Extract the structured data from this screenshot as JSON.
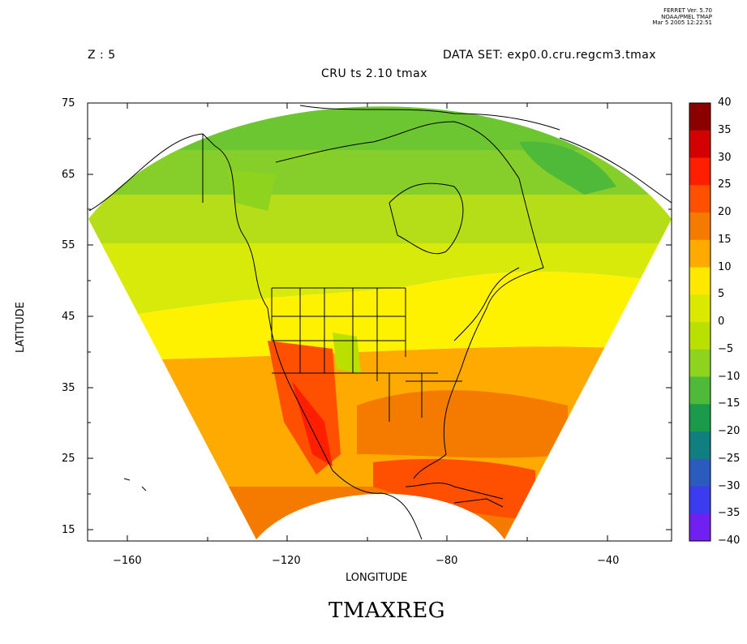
{
  "stamp": {
    "line1": "FERRET Ver. 5.70",
    "line2": "NOAA/PMEL TMAP",
    "line3": "Mar  5 2005 12:22:51"
  },
  "header": {
    "z_label": "Z : 5",
    "dataset": "DATA SET: exp0.0.cru.regcm3.tmax",
    "title": "CRU ts 2.10 tmax"
  },
  "axes": {
    "xlabel": "LONGITUDE",
    "ylabel": "LATITUDE",
    "x_ticks": [
      "−160",
      "−120",
      "−80",
      "−40"
    ],
    "y_ticks": [
      "75",
      "65",
      "55",
      "45",
      "35",
      "25",
      "15"
    ]
  },
  "colorbar": {
    "labels": [
      "40",
      "35",
      "30",
      "25",
      "20",
      "15",
      "10",
      "5",
      "0",
      "−5",
      "−10",
      "−15",
      "−20",
      "−25",
      "−30",
      "−35",
      "−40"
    ],
    "colors": [
      "#8b0000",
      "#d30000",
      "#ff1e00",
      "#ff4f00",
      "#f57a00",
      "#ffaa00",
      "#ffe800",
      "#dbe800",
      "#b9e000",
      "#8ed31d",
      "#4fba3a",
      "#1a9a4a",
      "#117f7f",
      "#2b5bbd",
      "#3b3bf0",
      "#7020f0",
      "#b010f0",
      "#e000ff"
    ]
  },
  "map": {
    "variable": "TMAXREG",
    "lon_range": [
      -170,
      -22
    ],
    "lat_range": [
      13.5,
      75
    ]
  },
  "footer": {
    "title": "TMAXREG"
  }
}
